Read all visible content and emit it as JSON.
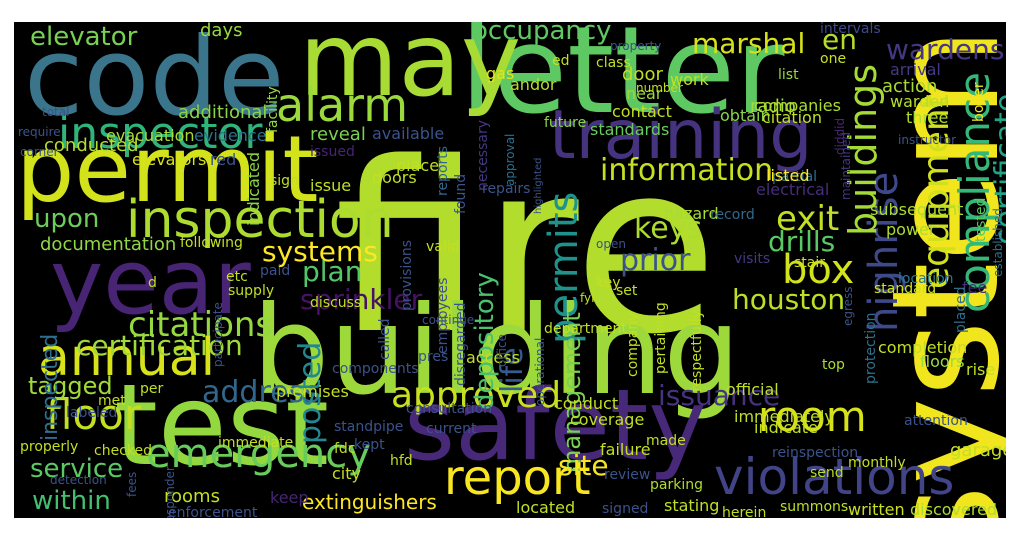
{
  "words": [
    {
      "text": "fire",
      "color": "#b2dd2c"
    },
    {
      "text": "building",
      "color": "#9dd93a"
    },
    {
      "text": "system",
      "color": "#f1e51d"
    },
    {
      "text": "letter",
      "color": "#5ec962"
    },
    {
      "text": "code",
      "color": "#3b758b"
    },
    {
      "text": "may",
      "color": "#a8db34"
    },
    {
      "text": "test",
      "color": "#94d840"
    },
    {
      "text": "safety",
      "color": "#482979"
    },
    {
      "text": "permit",
      "color": "#d2e21b"
    },
    {
      "text": "year",
      "color": "#482475"
    },
    {
      "text": "training",
      "color": "#46337f"
    },
    {
      "text": "inspection",
      "color": "#addc30"
    },
    {
      "text": "annual",
      "color": "#d8e219"
    },
    {
      "text": "inspector",
      "color": "#2fb47c"
    },
    {
      "text": "alarm",
      "color": "#9bd93c"
    },
    {
      "text": "emergency",
      "color": "#67cc5c"
    },
    {
      "text": "violations",
      "color": "#414487"
    },
    {
      "text": "report",
      "color": "#f8e621"
    },
    {
      "text": "approved",
      "color": "#c8e020"
    },
    {
      "text": "compliance",
      "color": "#35b779"
    },
    {
      "text": "equipment",
      "color": "#d0e11c"
    },
    {
      "text": "highrise",
      "color": "#3e4989"
    },
    {
      "text": "buildings",
      "color": "#a5db36"
    },
    {
      "text": "certificate",
      "color": "#20a486"
    },
    {
      "text": "room",
      "color": "#d8e219"
    },
    {
      "text": "box",
      "color": "#d2e21b"
    },
    {
      "text": "exit",
      "color": "#c0df25"
    },
    {
      "text": "floor",
      "color": "#c2df23"
    },
    {
      "text": "address",
      "color": "#31678e"
    },
    {
      "text": "permits",
      "color": "#20928c"
    },
    {
      "text": "sprinkler",
      "color": "#471164"
    },
    {
      "text": "citations",
      "color": "#95d840"
    },
    {
      "text": "certification",
      "color": "#a0da39"
    },
    {
      "text": "posted",
      "color": "#23888e"
    },
    {
      "text": "houston",
      "color": "#bddf26"
    },
    {
      "text": "life",
      "color": "#375b8d"
    },
    {
      "text": "plan",
      "color": "#54c568"
    },
    {
      "text": "systems",
      "color": "#fde725"
    },
    {
      "text": "upon",
      "color": "#6ccd5a"
    },
    {
      "text": "information",
      "color": "#c5e021"
    },
    {
      "text": "keys",
      "color": "#addc30"
    },
    {
      "text": "prior",
      "color": "#3b528b"
    },
    {
      "text": "drills",
      "color": "#5ac864"
    },
    {
      "text": "marshal",
      "color": "#d8e219"
    },
    {
      "text": "en",
      "color": "#b5de2b"
    },
    {
      "text": "wardens",
      "color": "#453781"
    },
    {
      "text": "occupancy",
      "color": "#5ec962"
    },
    {
      "text": "elevator",
      "color": "#77d153"
    },
    {
      "text": "depository",
      "color": "#4ac16d"
    },
    {
      "text": "management",
      "color": "#7ad151"
    },
    {
      "text": "issuance",
      "color": "#46327e"
    },
    {
      "text": "site",
      "color": "#f6e620"
    },
    {
      "text": "service",
      "color": "#5cc863"
    },
    {
      "text": "within",
      "color": "#44bf70"
    },
    {
      "text": "tagged",
      "color": "#a0da39"
    },
    {
      "text": "extinguishers",
      "color": "#fde725"
    },
    {
      "text": "documentation",
      "color": "#8fd744"
    },
    {
      "text": "inspected",
      "color": "#2e6e8e"
    },
    {
      "text": "days",
      "color": "#95d840"
    },
    {
      "text": "additional",
      "color": "#89d548"
    },
    {
      "text": "evacuation",
      "color": "#a8db34"
    },
    {
      "text": "conducted",
      "color": "#b5de2b"
    },
    {
      "text": "evidence",
      "color": "#2c728e"
    },
    {
      "text": "elevators",
      "color": "#d8e219"
    },
    {
      "text": "red",
      "color": "#3b528b"
    },
    {
      "text": "reveal",
      "color": "#7ad151"
    },
    {
      "text": "available",
      "color": "#3b528b"
    },
    {
      "text": "issued",
      "color": "#482475"
    },
    {
      "text": "indicated",
      "color": "#89d548"
    },
    {
      "text": "facility",
      "color": "#95d840"
    },
    {
      "text": "gas",
      "color": "#e5e419"
    },
    {
      "text": "andor",
      "color": "#b5de2b"
    },
    {
      "text": "door",
      "color": "#c2df23"
    },
    {
      "text": "near",
      "color": "#9bd93c"
    },
    {
      "text": "contact",
      "color": "#c0df25"
    },
    {
      "text": "reports",
      "color": "#31688e"
    },
    {
      "text": "necessary",
      "color": "#453781"
    },
    {
      "text": "future",
      "color": "#89d548"
    },
    {
      "text": "approval",
      "color": "#2d708e"
    },
    {
      "text": "standards",
      "color": "#67cc5c"
    },
    {
      "text": "work",
      "color": "#c2df23"
    },
    {
      "text": "companies",
      "color": "#addc30"
    },
    {
      "text": "obtain",
      "color": "#89d548"
    },
    {
      "text": "list",
      "color": "#9bd93c"
    },
    {
      "text": "citation",
      "color": "#c2df23"
    },
    {
      "text": "radio",
      "color": "#a5db36"
    },
    {
      "text": "action",
      "color": "#a8db34"
    },
    {
      "text": "warden",
      "color": "#b5de2b"
    },
    {
      "text": "arrival",
      "color": "#443983"
    },
    {
      "text": "intervals",
      "color": "#3e4989"
    },
    {
      "text": "one",
      "color": "#c8e020"
    },
    {
      "text": "three",
      "color": "#addc30"
    },
    {
      "text": "boiler",
      "color": "#f6e620"
    },
    {
      "text": "diddid",
      "color": "#482878"
    },
    {
      "text": "maintained",
      "color": "#453781"
    },
    {
      "text": "instructor",
      "color": "#3b528b"
    },
    {
      "text": "partial",
      "color": "#2e6e8e"
    },
    {
      "text": "electrical",
      "color": "#472d7b"
    },
    {
      "text": "listed",
      "color": "#fde725"
    },
    {
      "text": "hazard",
      "color": "#a8db34"
    },
    {
      "text": "record",
      "color": "#31688e"
    },
    {
      "text": "subsequent",
      "color": "#addc30"
    },
    {
      "text": "power",
      "color": "#addc30"
    },
    {
      "text": "tested",
      "color": "#5ec962"
    },
    {
      "text": "established",
      "color": "#2e6e8e"
    },
    {
      "text": "location",
      "color": "#2a788e"
    },
    {
      "text": "visits",
      "color": "#443983"
    },
    {
      "text": "stair",
      "color": "#c8e020"
    },
    {
      "text": "standard",
      "color": "#d2e21b"
    },
    {
      "text": "fee",
      "color": "#472d7b"
    },
    {
      "text": "egress",
      "color": "#3b528b"
    },
    {
      "text": "placed",
      "color": "#2e6e8e"
    },
    {
      "text": "completion",
      "color": "#c2df23"
    },
    {
      "text": "floors",
      "color": "#a0da39"
    },
    {
      "text": "rise",
      "color": "#c0df25"
    },
    {
      "text": "protection",
      "color": "#2d708e"
    },
    {
      "text": "top",
      "color": "#addc30"
    },
    {
      "text": "official",
      "color": "#c0df25"
    },
    {
      "text": "immediately",
      "color": "#c0df25"
    },
    {
      "text": "attention",
      "color": "#3b528b"
    },
    {
      "text": "garage",
      "color": "#c2df23"
    },
    {
      "text": "indicate",
      "color": "#c2df23"
    },
    {
      "text": "reinspection",
      "color": "#3b528b"
    },
    {
      "text": "monthly",
      "color": "#c2df23"
    },
    {
      "text": "send",
      "color": "#b5de2b"
    },
    {
      "text": "written",
      "color": "#c8e020"
    },
    {
      "text": "discovered",
      "color": "#addc30"
    },
    {
      "text": "summons",
      "color": "#bddf26"
    },
    {
      "text": "herein",
      "color": "#c2df23"
    },
    {
      "text": "parking",
      "color": "#addc30"
    },
    {
      "text": "review",
      "color": "#3b528b"
    },
    {
      "text": "failure",
      "color": "#c2df23"
    },
    {
      "text": "made",
      "color": "#c2df23"
    },
    {
      "text": "signed",
      "color": "#3b528b"
    },
    {
      "text": "located",
      "color": "#c2df23"
    },
    {
      "text": "stating",
      "color": "#c2df23"
    },
    {
      "text": "coverage",
      "color": "#c2df23"
    },
    {
      "text": "conduct",
      "color": "#c2df23"
    },
    {
      "text": "consultation",
      "color": "#3b528b"
    },
    {
      "text": "current",
      "color": "#3b528b"
    },
    {
      "text": "kept",
      "color": "#3b528b"
    },
    {
      "text": "fdc",
      "color": "#c2df23"
    },
    {
      "text": "hfd",
      "color": "#c2df23"
    },
    {
      "text": "city",
      "color": "#c2df23"
    },
    {
      "text": "enforcement",
      "color": "#3b528b"
    },
    {
      "text": "keep",
      "color": "#482475"
    },
    {
      "text": "rooms",
      "color": "#c2df23"
    },
    {
      "text": "fees",
      "color": "#3b528b"
    },
    {
      "text": "detection",
      "color": "#3b528b"
    },
    {
      "text": "checked",
      "color": "#c2df23"
    },
    {
      "text": "properly",
      "color": "#c2df23"
    },
    {
      "text": "immediate",
      "color": "#c2df23"
    },
    {
      "text": "responder",
      "color": "#3b528b"
    },
    {
      "text": "labeled",
      "color": "#3b528b"
    },
    {
      "text": "met",
      "color": "#c2df23"
    },
    {
      "text": "per",
      "color": "#c2df23"
    },
    {
      "text": "premises",
      "color": "#c2df23"
    },
    {
      "text": "components",
      "color": "#3b528b"
    },
    {
      "text": "standpipe",
      "color": "#3b528b"
    },
    {
      "text": "called",
      "color": "#3b528b"
    },
    {
      "text": "pres",
      "color": "#3b528b"
    },
    {
      "text": "access",
      "color": "#c2df23"
    },
    {
      "text": "disregarded",
      "color": "#3b528b"
    },
    {
      "text": "operational",
      "color": "#3b528b"
    },
    {
      "text": "department",
      "color": "#c2df23"
    },
    {
      "text": "company",
      "color": "#c2df23"
    },
    {
      "text": "pertaining",
      "color": "#c2df23"
    },
    {
      "text": "respectfully",
      "color": "#c2df23"
    },
    {
      "text": "office",
      "color": "#3b528b"
    },
    {
      "text": "continue",
      "color": "#3b528b"
    },
    {
      "text": "discuss",
      "color": "#c2df23"
    },
    {
      "text": "participate",
      "color": "#3b528b"
    },
    {
      "text": "paid",
      "color": "#3b528b"
    },
    {
      "text": "supply",
      "color": "#c2df23"
    },
    {
      "text": "etc",
      "color": "#c2df23"
    },
    {
      "text": "d",
      "color": "#c2df23"
    },
    {
      "text": "following",
      "color": "#c2df23"
    },
    {
      "text": "employees",
      "color": "#3b528b"
    },
    {
      "text": "provisions",
      "color": "#3b528b"
    },
    {
      "text": "valid",
      "color": "#c2df23"
    },
    {
      "text": "fyi",
      "color": "#c2df23"
    },
    {
      "text": "key",
      "color": "#c2df23"
    },
    {
      "text": "set",
      "color": "#c2df23"
    },
    {
      "text": "open",
      "color": "#3b528b"
    },
    {
      "text": "highlighted",
      "color": "#3b528b"
    },
    {
      "text": "repairs",
      "color": "#3b528b"
    },
    {
      "text": "place",
      "color": "#c2df23"
    },
    {
      "text": "issue",
      "color": "#c2df23"
    },
    {
      "text": "found",
      "color": "#3b528b"
    },
    {
      "text": "sign",
      "color": "#c2df23"
    },
    {
      "text": "doors",
      "color": "#c2df23"
    },
    {
      "text": "number",
      "color": "#c2df23"
    },
    {
      "text": "class",
      "color": "#c2df23"
    },
    {
      "text": "property",
      "color": "#3b528b"
    },
    {
      "text": "ed",
      "color": "#c2df23"
    },
    {
      "text": "require",
      "color": "#3b528b"
    },
    {
      "text": "total",
      "color": "#3b528b"
    },
    {
      "text": "corner",
      "color": "#3b528b"
    }
  ]
}
